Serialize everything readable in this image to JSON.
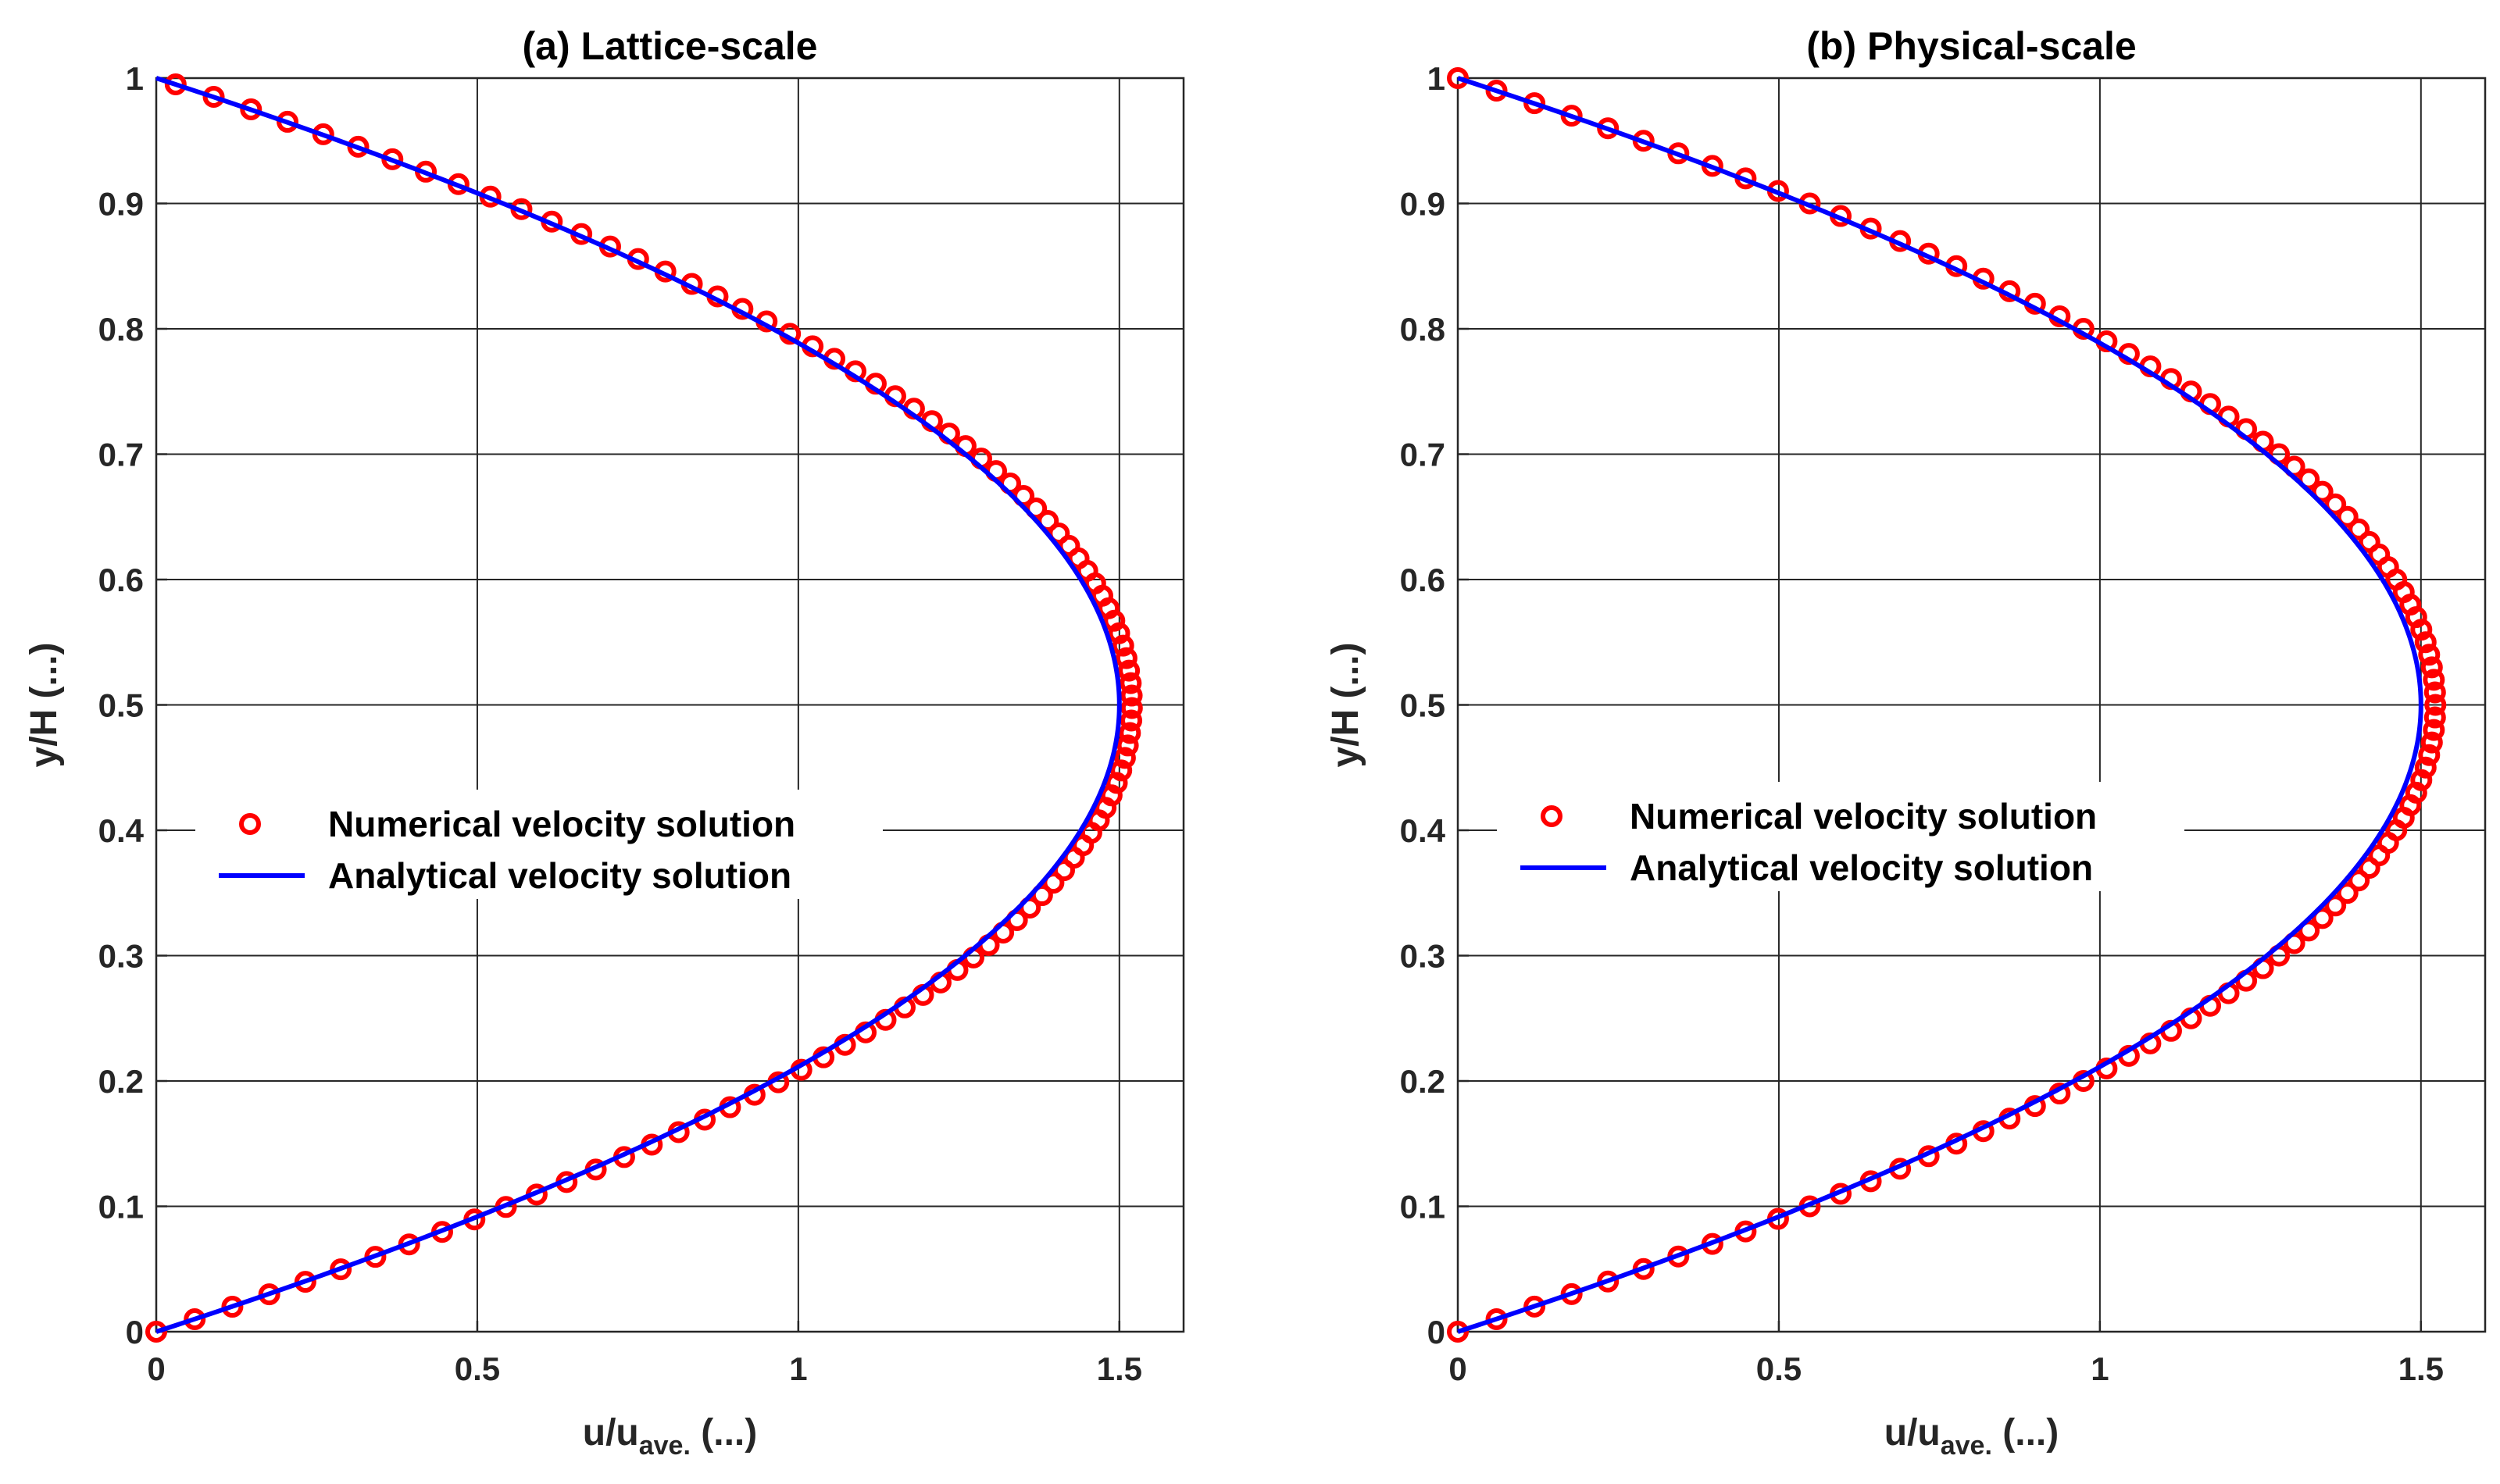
{
  "figure": {
    "background": "#ffffff",
    "grid_color": "#262626",
    "axes_color": "#262626"
  },
  "chart_data": [
    {
      "type": "line",
      "title": "(a) Lattice-scale",
      "xlabel_main": "u/u",
      "xlabel_sub": "ave.",
      "xlabel_suffix": " (...)",
      "ylabel": "y/H (...)",
      "xlim": [
        0,
        1.6
      ],
      "ylim": [
        0,
        1
      ],
      "xticks": [
        0,
        0.5,
        1,
        1.5
      ],
      "xtick_labels": [
        "0",
        "0.5",
        "1",
        "1.5"
      ],
      "yticks": [
        0,
        0.1,
        0.2,
        0.3,
        0.4,
        0.5,
        0.6,
        0.7,
        0.8,
        0.9,
        1
      ],
      "ytick_labels": [
        "0",
        "0.1",
        "0.2",
        "0.3",
        "0.4",
        "0.5",
        "0.6",
        "0.7",
        "0.8",
        "0.9",
        "1"
      ],
      "grid": true,
      "legend": {
        "position": "center-left",
        "entries": [
          "Numerical velocity solution",
          "Analytical velocity solution"
        ]
      },
      "series": [
        {
          "name": "Numerical velocity solution",
          "marker": "circle",
          "color": "#ff0000",
          "formula": "u/u_ave = 6*(y/H)*(1-y/H)*1.013",
          "n_points": 101,
          "y_range": [
            0,
            0.995
          ]
        },
        {
          "name": "Analytical velocity solution",
          "marker": "line",
          "color": "#0000ff",
          "formula": "u/u_ave = 6*(y/H)*(1-y/H)",
          "y_range": [
            0,
            1
          ]
        }
      ]
    },
    {
      "type": "line",
      "title": "(b) Physical-scale",
      "xlabel_main": "u/u",
      "xlabel_sub": "ave.",
      "xlabel_suffix": " (...)",
      "ylabel": "y/H (...)",
      "xlim": [
        0,
        1.6
      ],
      "ylim": [
        0,
        1
      ],
      "xticks": [
        0,
        0.5,
        1,
        1.5
      ],
      "xtick_labels": [
        "0",
        "0.5",
        "1",
        "1.5"
      ],
      "yticks": [
        0,
        0.1,
        0.2,
        0.3,
        0.4,
        0.5,
        0.6,
        0.7,
        0.8,
        0.9,
        1
      ],
      "ytick_labels": [
        "0",
        "0.1",
        "0.2",
        "0.3",
        "0.4",
        "0.5",
        "0.6",
        "0.7",
        "0.8",
        "0.9",
        "1"
      ],
      "grid": true,
      "legend": {
        "position": "center-left",
        "entries": [
          "Numerical velocity solution",
          "Analytical velocity solution"
        ]
      },
      "series": [
        {
          "name": "Numerical velocity solution",
          "marker": "circle",
          "color": "#ff0000",
          "formula": "u/u_ave = 6*(y/H)*(1-y/H)*1.015",
          "n_points": 101,
          "y_range": [
            0,
            1
          ]
        },
        {
          "name": "Analytical velocity solution",
          "marker": "line",
          "color": "#0000ff",
          "formula": "u/u_ave = 6*(y/H)*(1-y/H)",
          "y_range": [
            0,
            1
          ]
        }
      ]
    }
  ]
}
